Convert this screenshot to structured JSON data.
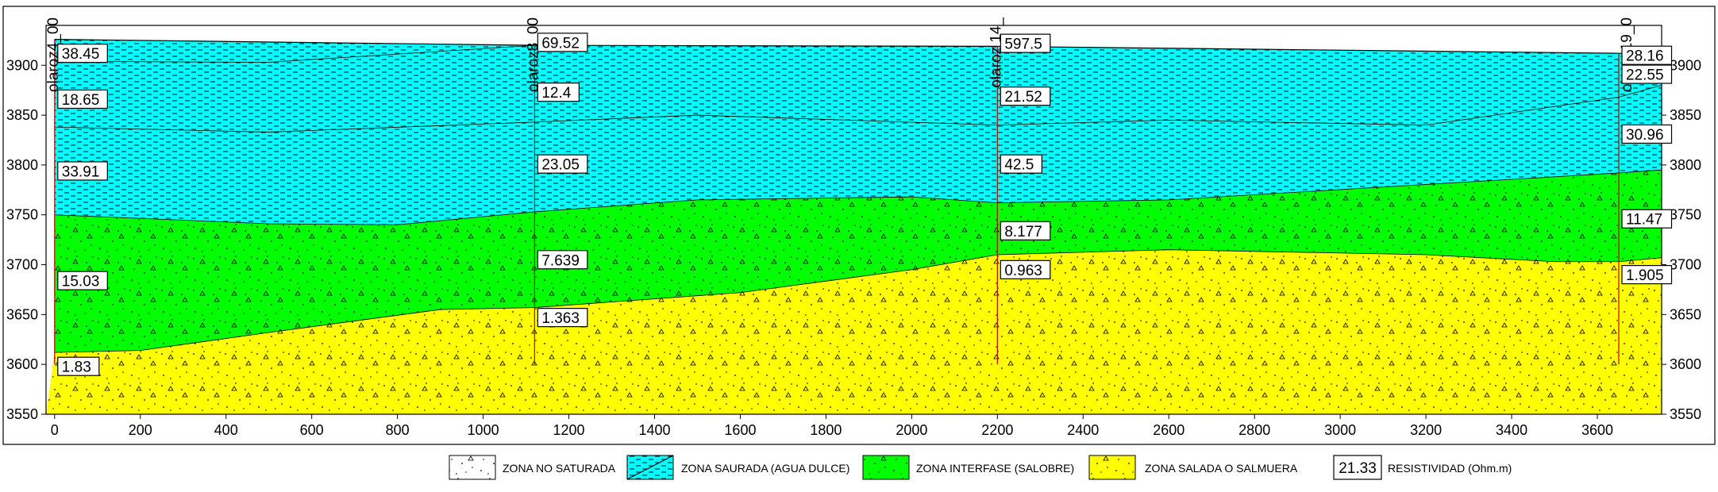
{
  "chart_data": {
    "type": "cross-section",
    "xlim": [
      -20,
      3750
    ],
    "ylim": [
      3550,
      3940
    ],
    "x_ticks": [
      0,
      200,
      400,
      600,
      800,
      1000,
      1200,
      1400,
      1600,
      1800,
      2000,
      2200,
      2400,
      2600,
      2800,
      3000,
      3200,
      3400,
      3600
    ],
    "y_ticks": [
      3550,
      3600,
      3650,
      3700,
      3750,
      3800,
      3850,
      3900
    ],
    "zones": [
      {
        "id": "no-saturada",
        "label": "ZONA NO SATURADA",
        "color": "#ffffff",
        "pattern": "dots"
      },
      {
        "id": "saturada",
        "label": "ZONA SAURADA (AGUA DULCE)",
        "color": "#00ffff",
        "pattern": "dash"
      },
      {
        "id": "interfase",
        "label": "ZONA INTERFASE (SALOBRE)",
        "color": "#00ff00",
        "pattern": "dots"
      },
      {
        "id": "salada",
        "label": "ZONA SALADA O SALMUERA",
        "color": "#ffff00",
        "pattern": "dots"
      }
    ],
    "boundaries": {
      "surface": [
        [
          0,
          3926
        ],
        [
          1120,
          3920
        ],
        [
          2200,
          3919
        ],
        [
          3650,
          3912
        ],
        [
          3750,
          3912
        ]
      ],
      "dash_bottom": [
        [
          0,
          3838
        ],
        [
          500,
          3833
        ],
        [
          1120,
          3843
        ],
        [
          1500,
          3850
        ],
        [
          2200,
          3840
        ],
        [
          2600,
          3845
        ],
        [
          3200,
          3840
        ],
        [
          3650,
          3868
        ],
        [
          3750,
          3880
        ]
      ],
      "fresh_bottom": [
        [
          0,
          3750
        ],
        [
          500,
          3741
        ],
        [
          800,
          3740
        ],
        [
          1120,
          3753
        ],
        [
          1500,
          3765
        ],
        [
          2000,
          3768
        ],
        [
          2200,
          3762
        ],
        [
          2600,
          3765
        ],
        [
          3650,
          3792
        ],
        [
          3750,
          3795
        ]
      ],
      "salobre_bottom": [
        [
          0,
          3612
        ],
        [
          200,
          3614
        ],
        [
          500,
          3632
        ],
        [
          900,
          3655
        ],
        [
          1120,
          3657
        ],
        [
          1600,
          3672
        ],
        [
          2000,
          3695
        ],
        [
          2200,
          3710
        ],
        [
          2600,
          3715
        ],
        [
          3200,
          3710
        ],
        [
          3500,
          3703
        ],
        [
          3650,
          3703
        ],
        [
          3750,
          3707
        ]
      ],
      "lower_thin": [
        [
          0,
          3904
        ],
        [
          500,
          3903
        ],
        [
          1120,
          3920
        ]
      ]
    },
    "wells": [
      {
        "name": "olaroz4_00",
        "x": 0,
        "top": 3926
      },
      {
        "name": "olaroz8_00",
        "x": 1120,
        "top": 3921
      },
      {
        "name": "olaroz 14_",
        "x": 2200,
        "top": 3919
      },
      {
        "name": "olaroz19_0",
        "x": 3650,
        "top": 3912
      }
    ],
    "resistivity_labels": [
      {
        "value": "38.45",
        "x": 0,
        "y": 3912
      },
      {
        "value": "18.65",
        "x": 0,
        "y": 3866
      },
      {
        "value": "33.91",
        "x": 0,
        "y": 3794
      },
      {
        "value": "15.03",
        "x": 0,
        "y": 3684
      },
      {
        "value": "1.83",
        "x": 0,
        "y": 3598
      },
      {
        "value": "69.52",
        "x": 1120,
        "y": 3923
      },
      {
        "value": "12.4",
        "x": 1120,
        "y": 3873
      },
      {
        "value": "23.05",
        "x": 1120,
        "y": 3801
      },
      {
        "value": "7.639",
        "x": 1120,
        "y": 3705
      },
      {
        "value": "1.363",
        "x": 1120,
        "y": 3647
      },
      {
        "value": "597.5",
        "x": 2200,
        "y": 3922
      },
      {
        "value": "21.52",
        "x": 2200,
        "y": 3869
      },
      {
        "value": "42.5",
        "x": 2200,
        "y": 3801
      },
      {
        "value": "8.177",
        "x": 2200,
        "y": 3734
      },
      {
        "value": "0.963",
        "x": 2200,
        "y": 3695
      },
      {
        "value": "28.16",
        "x": 3650,
        "y": 3910
      },
      {
        "value": "22.55",
        "x": 3650,
        "y": 3891
      },
      {
        "value": "30.96",
        "x": 3650,
        "y": 3831
      },
      {
        "value": "11.47",
        "x": 3650,
        "y": 3746
      },
      {
        "value": "1.905",
        "x": 3650,
        "y": 3690
      }
    ]
  },
  "legend": {
    "items": [
      {
        "label": "ZONA NO SATURADA",
        "swatch": "no-saturada"
      },
      {
        "label": "ZONA SAURADA (AGUA DULCE)",
        "swatch": "saturada"
      },
      {
        "label": "ZONA INTERFASE (SALOBRE)",
        "swatch": "interfase"
      },
      {
        "label": "ZONA SALADA O SALMUERA",
        "swatch": "salada"
      }
    ],
    "resistivity_example": "21.33",
    "resistivity_label": "RESISTIVIDAD (Ohm.m)"
  }
}
